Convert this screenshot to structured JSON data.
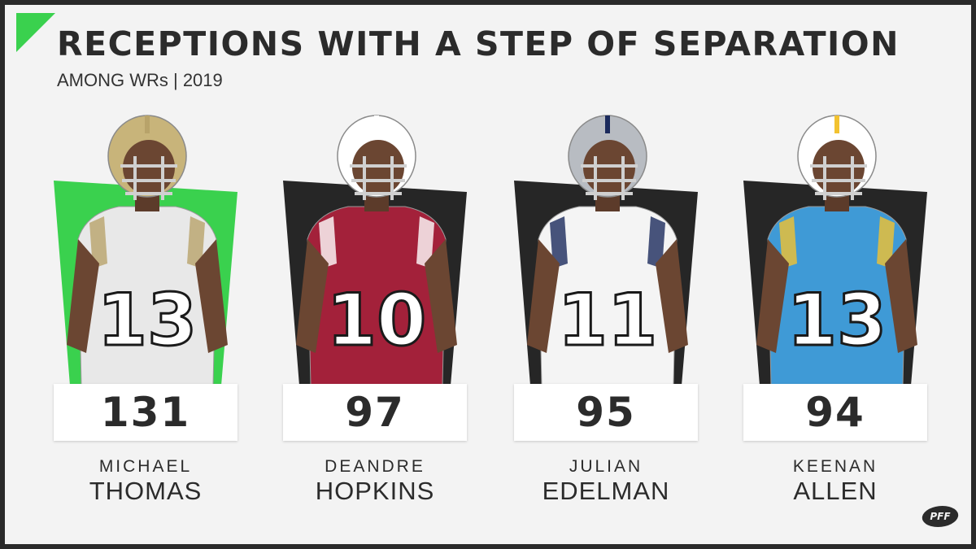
{
  "chart_data": {
    "type": "bar",
    "title": "RECEPTIONS WITH A STEP OF SEPARATION",
    "subtitle": "AMONG WRs | 2019",
    "categories": [
      "MICHAEL THOMAS",
      "DEANDRE HOPKINS",
      "JULIAN EDELMAN",
      "KEENAN ALLEN"
    ],
    "values": [
      131,
      97,
      95,
      94
    ],
    "players": [
      {
        "first": "MICHAEL",
        "last": "THOMAS",
        "value": "131",
        "jersey": "13",
        "team_color": "#e8e8e8",
        "accent": "#b8a36a",
        "helmet": "#c8b47a",
        "bg_color": "#3ad14e"
      },
      {
        "first": "DEANDRE",
        "last": "HOPKINS",
        "value": "97",
        "jersey": "10",
        "team_color": "#a3213a",
        "accent": "#ffffff",
        "helmet": "#ffffff",
        "bg_color": "#262626"
      },
      {
        "first": "JULIAN",
        "last": "EDELMAN",
        "value": "95",
        "jersey": "11",
        "team_color": "#f4f4f4",
        "accent": "#1b2a5c",
        "helmet": "#b8bcc2",
        "bg_color": "#262626"
      },
      {
        "first": "KEENAN",
        "last": "ALLEN",
        "value": "94",
        "jersey": "13",
        "team_color": "#3f9ad6",
        "accent": "#f2c230",
        "helmet": "#ffffff",
        "bg_color": "#262626"
      }
    ]
  },
  "brand": {
    "logo_text": "PFF"
  }
}
